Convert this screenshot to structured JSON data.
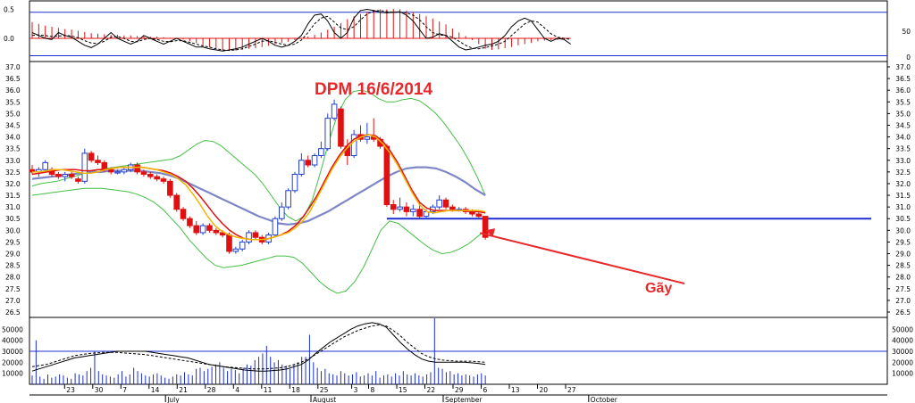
{
  "chart_data": {
    "type": "candlestick",
    "title": "DPM 16/6/2014",
    "annotation": {
      "text": "Gãy",
      "arrow_to_date": 116,
      "arrow_to_value": 30.0
    },
    "colors": {
      "up": "#1f3fd6",
      "down": "#e01010",
      "ma_fast": "#f2b400",
      "ma_slow": "#e01010",
      "ma_mid": "#7e86c8",
      "bands": "#43c043",
      "support": "#1c2fd4",
      "osc_hist": "#e01010",
      "volume": "#1c2fd4"
    },
    "price_axis": {
      "min": 26.5,
      "max": 37.0,
      "ticks": [
        "37.0",
        "36.5",
        "36.0",
        "35.5",
        "35.0",
        "34.5",
        "34.0",
        "33.5",
        "33.0",
        "32.5",
        "32.0",
        "31.5",
        "31.0",
        "30.5",
        "30.0",
        "29.5",
        "29.0",
        "28.5",
        "28.0",
        "27.5",
        "27.0",
        "26.5"
      ]
    },
    "support_line": 30.5,
    "oscillator": {
      "left_ticks": [
        "0.5",
        "0.0"
      ],
      "right_ticks": [
        "50",
        "0"
      ],
      "range": [
        -0.4,
        0.6
      ],
      "upper_line": 0.45,
      "lower_line": -0.3,
      "hist": [
        0.28,
        0.25,
        0.22,
        0.2,
        0.18,
        0.16,
        0.15,
        0.13,
        0.11,
        0.09,
        0.08,
        0.07,
        0.06,
        0.06,
        0.05,
        0.05,
        0.04,
        0.04,
        0.03,
        0.03,
        0.02,
        0.01,
        0.0,
        -0.02,
        -0.05,
        -0.08,
        -0.12,
        -0.15,
        -0.17,
        -0.2,
        -0.2,
        -0.21,
        -0.2,
        -0.18,
        -0.17,
        -0.15,
        -0.13,
        -0.1,
        -0.08,
        -0.06,
        -0.03,
        0.0,
        0.03,
        0.06,
        0.1,
        0.15,
        0.2,
        0.26,
        0.33,
        0.38,
        0.42,
        0.46,
        0.48,
        0.5,
        0.5,
        0.51,
        0.5,
        0.48,
        0.45,
        0.42,
        0.38,
        0.34,
        0.29,
        0.24,
        0.17,
        0.1,
        0.04,
        -0.03,
        -0.1,
        -0.18,
        -0.2,
        -0.19,
        -0.17,
        -0.15,
        -0.12,
        -0.1,
        -0.08,
        -0.05,
        -0.04,
        -0.03,
        -0.03,
        -0.02
      ],
      "line1": [
        0.1,
        0.05,
        0.0,
        -0.02,
        0.1,
        0.05,
        0.02,
        -0.05,
        -0.12,
        -0.16,
        -0.1,
        0.0,
        0.1,
        0.0,
        -0.05,
        -0.1,
        -0.05,
        0.05,
        0.0,
        -0.05,
        -0.1,
        -0.05,
        0.0,
        -0.05,
        -0.1,
        -0.15,
        -0.15,
        -0.18,
        -0.2,
        -0.22,
        -0.2,
        -0.18,
        -0.15,
        -0.1,
        -0.05,
        0.0,
        -0.05,
        -0.12,
        -0.15,
        -0.12,
        -0.05,
        0.05,
        0.25,
        0.4,
        0.42,
        0.3,
        0.1,
        0.0,
        0.1,
        0.35,
        0.48,
        0.5,
        0.48,
        0.45,
        0.44,
        0.45,
        0.46,
        0.4,
        0.3,
        0.15,
        0.0,
        0.02,
        0.08,
        0.05,
        -0.05,
        -0.15,
        -0.2,
        -0.18,
        -0.15,
        -0.12,
        -0.1,
        -0.05,
        0.05,
        0.2,
        0.3,
        0.35,
        0.3,
        0.15,
        0.0,
        -0.05,
        0.0,
        -0.02,
        -0.1
      ],
      "line2": [
        0.05,
        0.06,
        0.05,
        0.03,
        0.04,
        0.05,
        0.04,
        0.01,
        -0.04,
        -0.08,
        -0.09,
        -0.05,
        0.02,
        0.03,
        0.0,
        -0.05,
        -0.06,
        -0.02,
        0.0,
        -0.02,
        -0.05,
        -0.06,
        -0.04,
        -0.04,
        -0.07,
        -0.1,
        -0.13,
        -0.15,
        -0.18,
        -0.2,
        -0.21,
        -0.2,
        -0.18,
        -0.14,
        -0.1,
        -0.05,
        -0.04,
        -0.07,
        -0.1,
        -0.12,
        -0.1,
        -0.03,
        0.1,
        0.25,
        0.35,
        0.38,
        0.28,
        0.18,
        0.15,
        0.2,
        0.32,
        0.42,
        0.47,
        0.48,
        0.46,
        0.45,
        0.45,
        0.44,
        0.4,
        0.32,
        0.2,
        0.1,
        0.06,
        0.05,
        0.02,
        -0.05,
        -0.12,
        -0.17,
        -0.18,
        -0.16,
        -0.13,
        -0.1,
        -0.05,
        0.05,
        0.15,
        0.25,
        0.3,
        0.28,
        0.18,
        0.08,
        0.02,
        0.0,
        -0.02
      ]
    },
    "volume_panel": {
      "left_ticks": [
        "50000",
        "40000",
        "30000",
        "20000",
        "10000"
      ],
      "right_ticks": [
        "50000",
        "40000",
        "30000",
        "20000",
        "10000"
      ],
      "range": [
        0,
        60000
      ],
      "volume": [
        8000,
        40000,
        7000,
        5000,
        9000,
        6000,
        7000,
        9000,
        8000,
        6000,
        5000,
        10000,
        9000,
        8000,
        12000,
        15000,
        30000,
        12000,
        9000,
        8000,
        7000,
        6000,
        9000,
        12000,
        7000,
        9000,
        15000,
        12000,
        10000,
        8000,
        7000,
        9000,
        10000,
        8000,
        6000,
        5000,
        7000,
        9000,
        8000,
        11000,
        9000,
        8000,
        14000,
        15000,
        12000,
        14000,
        16000,
        18000,
        20000,
        15000,
        12000,
        14000,
        13000,
        10000,
        15000,
        18000,
        17000,
        22000,
        25000,
        28000,
        35000,
        25000,
        20000,
        22000,
        18000,
        17000,
        14000,
        18000,
        20000,
        25000,
        25000,
        45000,
        20000,
        15000,
        12000,
        14000,
        10000,
        9000,
        8000,
        12000,
        10000,
        8000,
        9000,
        11000,
        7000,
        8000,
        10000,
        8000,
        12000,
        6000,
        8000,
        9000,
        7000,
        10000,
        8000,
        12000,
        9000,
        8000,
        10000,
        8000,
        7000,
        9000,
        11000,
        60000,
        15000,
        14000,
        11000,
        12000,
        9000,
        10000,
        8000,
        9000,
        8000,
        7000,
        9000,
        10000,
        8000
      ],
      "vol_ma1": [
        12000,
        14000,
        16000,
        18000,
        20000,
        22000,
        24000,
        25000,
        26000,
        27000,
        28000,
        29000,
        30000,
        30000,
        30000,
        30000,
        30000,
        29000,
        28000,
        27000,
        26000,
        25000,
        24000,
        22000,
        20000,
        18000,
        17000,
        16000,
        15000,
        14000,
        13000,
        12500,
        12000,
        12000,
        12500,
        13000,
        14000,
        16000,
        18000,
        22000,
        28000,
        33000,
        38000,
        42000,
        46000,
        50000,
        53000,
        55000,
        56000,
        55000,
        52000,
        45000,
        38000,
        32000,
        27000,
        23000,
        21000,
        20000,
        20000,
        20000,
        20000,
        20000,
        19500,
        19000,
        18000
      ],
      "vol_ma2": [
        16000,
        17000,
        18000,
        20000,
        22000,
        24000,
        26000,
        27000,
        28000,
        28500,
        29000,
        29000,
        29000,
        28500,
        28000,
        27500,
        27000,
        26000,
        25000,
        24000,
        23000,
        22000,
        21000,
        20000,
        19000,
        18000,
        17000,
        16000,
        15500,
        15000,
        14500,
        14000,
        14000,
        14000,
        14500,
        15000,
        16000,
        18000,
        20000,
        23000,
        27000,
        31000,
        35000,
        39000,
        43000,
        46000,
        49000,
        51000,
        53000,
        54000,
        53000,
        49000,
        44000,
        38000,
        33000,
        28000,
        25000,
        23000,
        22000,
        21500,
        21000,
        21000,
        21000,
        20500,
        20000
      ]
    },
    "x_axis": {
      "day_ticks": [
        {
          "label": "23",
          "i": 1
        },
        {
          "label": "30",
          "i": 6
        },
        {
          "label": "7",
          "i": 11
        },
        {
          "label": "14",
          "i": 16
        },
        {
          "label": "21",
          "i": 21
        },
        {
          "label": "28",
          "i": 26
        },
        {
          "label": "4",
          "i": 31
        },
        {
          "label": "11",
          "i": 36
        },
        {
          "label": "18",
          "i": 41
        },
        {
          "label": "25",
          "i": 46
        },
        {
          "label": "3",
          "i": 52
        },
        {
          "label": "8",
          "i": 55
        },
        {
          "label": "15",
          "i": 60
        },
        {
          "label": "22",
          "i": 65
        },
        {
          "label": "29",
          "i": 70
        },
        {
          "label": "6",
          "i": 75
        },
        {
          "label": "13",
          "i": 80
        },
        {
          "label": "20",
          "i": 85
        },
        {
          "label": "27",
          "i": 90
        }
      ],
      "month_ticks": [
        {
          "label": "July",
          "i": 8
        },
        {
          "label": "August",
          "i": 30
        },
        {
          "label": "September",
          "i": 50
        },
        {
          "label": "October",
          "i": 72
        }
      ]
    },
    "candles": [
      [
        32.6,
        32.8,
        32.4,
        32.5
      ],
      [
        32.5,
        32.7,
        32.3,
        32.6
      ],
      [
        32.6,
        33.0,
        32.5,
        32.9
      ],
      [
        32.6,
        32.7,
        32.3,
        32.4
      ],
      [
        32.4,
        32.5,
        32.2,
        32.3
      ],
      [
        32.3,
        32.5,
        32.1,
        32.4
      ],
      [
        32.4,
        32.5,
        32.2,
        32.3
      ],
      [
        32.2,
        32.3,
        32.0,
        32.1
      ],
      [
        32.1,
        33.5,
        32.0,
        33.3
      ],
      [
        33.3,
        33.4,
        32.9,
        33.0
      ],
      [
        33.0,
        33.2,
        32.8,
        32.9
      ],
      [
        32.9,
        33.0,
        32.5,
        32.6
      ],
      [
        32.6,
        32.7,
        32.4,
        32.5
      ],
      [
        32.5,
        32.6,
        32.4,
        32.5
      ],
      [
        32.5,
        32.7,
        32.4,
        32.6
      ],
      [
        32.6,
        32.9,
        32.5,
        32.8
      ],
      [
        32.8,
        32.9,
        32.4,
        32.5
      ],
      [
        32.5,
        32.6,
        32.3,
        32.4
      ],
      [
        32.4,
        32.5,
        32.2,
        32.3
      ],
      [
        32.3,
        32.4,
        32.1,
        32.2
      ],
      [
        32.2,
        32.3,
        32.0,
        32.1
      ],
      [
        32.1,
        32.2,
        31.4,
        31.5
      ],
      [
        31.5,
        31.6,
        30.8,
        30.9
      ],
      [
        30.9,
        31.0,
        30.4,
        30.5
      ],
      [
        30.5,
        30.6,
        30.1,
        30.2
      ],
      [
        30.2,
        30.4,
        29.8,
        29.9
      ],
      [
        29.9,
        30.3,
        29.8,
        30.2
      ],
      [
        30.2,
        30.3,
        29.9,
        30.0
      ],
      [
        30.0,
        30.1,
        29.8,
        29.9
      ],
      [
        29.9,
        30.0,
        29.7,
        29.8
      ],
      [
        29.8,
        29.9,
        29.0,
        29.1
      ],
      [
        29.1,
        29.3,
        29.0,
        29.2
      ],
      [
        29.2,
        29.6,
        29.1,
        29.5
      ],
      [
        29.5,
        30.0,
        29.4,
        29.9
      ],
      [
        29.9,
        30.0,
        29.6,
        29.7
      ],
      [
        29.7,
        29.8,
        29.4,
        29.5
      ],
      [
        29.5,
        29.9,
        29.4,
        29.8
      ],
      [
        29.8,
        30.6,
        29.7,
        30.5
      ],
      [
        30.5,
        31.2,
        30.4,
        31.0
      ],
      [
        31.0,
        31.8,
        30.9,
        31.7
      ],
      [
        31.7,
        32.5,
        31.6,
        32.4
      ],
      [
        32.4,
        33.3,
        32.3,
        33.0
      ],
      [
        33.0,
        33.2,
        32.7,
        32.8
      ],
      [
        32.8,
        33.3,
        32.7,
        33.2
      ],
      [
        33.2,
        33.8,
        33.1,
        33.5
      ],
      [
        33.5,
        35.0,
        33.4,
        34.8
      ],
      [
        34.8,
        35.6,
        34.7,
        35.4
      ],
      [
        35.2,
        35.3,
        33.5,
        33.6
      ],
      [
        33.6,
        33.9,
        32.8,
        33.2
      ],
      [
        33.2,
        34.3,
        33.1,
        34.1
      ],
      [
        34.1,
        34.5,
        33.8,
        33.9
      ],
      [
        33.9,
        34.6,
        33.7,
        34.0
      ],
      [
        34.0,
        34.8,
        33.8,
        33.9
      ],
      [
        33.9,
        34.0,
        33.5,
        33.6
      ],
      [
        33.6,
        33.7,
        31.0,
        31.1
      ],
      [
        31.1,
        31.3,
        30.7,
        30.9
      ],
      [
        30.9,
        31.4,
        30.8,
        31.0
      ],
      [
        31.0,
        31.2,
        30.6,
        30.8
      ],
      [
        30.8,
        31.1,
        30.6,
        30.9
      ],
      [
        30.9,
        31.2,
        30.5,
        30.6
      ],
      [
        30.6,
        30.9,
        30.5,
        30.8
      ],
      [
        30.8,
        31.1,
        30.7,
        31.0
      ],
      [
        31.0,
        31.5,
        30.9,
        31.3
      ],
      [
        31.3,
        31.4,
        30.9,
        31.0
      ],
      [
        31.0,
        31.1,
        30.8,
        30.9
      ],
      [
        30.9,
        31.0,
        30.8,
        30.9
      ],
      [
        30.9,
        31.0,
        30.7,
        30.8
      ],
      [
        30.8,
        30.9,
        30.6,
        30.7
      ],
      [
        30.7,
        30.8,
        30.5,
        30.6
      ],
      [
        30.6,
        30.6,
        29.6,
        29.7
      ]
    ],
    "ma_fast": [
      32.5,
      32.5,
      32.55,
      32.6,
      32.6,
      32.55,
      32.5,
      32.45,
      32.45,
      32.5,
      32.6,
      32.65,
      32.7,
      32.7,
      32.7,
      32.7,
      32.65,
      32.6,
      32.5,
      32.4,
      32.2,
      31.95,
      31.55,
      31.1,
      30.6,
      30.2,
      29.95,
      29.8,
      29.7,
      29.65,
      29.6,
      29.6,
      29.62,
      29.7,
      29.8,
      29.9,
      30.1,
      30.4,
      30.8,
      31.4,
      32.0,
      32.6,
      33.1,
      33.5,
      33.8,
      34.0,
      34.1,
      34.0,
      33.7,
      33.3,
      32.8,
      32.2,
      31.6,
      31.1,
      30.8,
      30.75,
      30.8,
      30.85,
      30.85,
      30.85,
      30.85,
      30.85,
      30.8
    ],
    "ma_slow": [
      32.4,
      32.45,
      32.5,
      32.55,
      32.6,
      32.6,
      32.6,
      32.55,
      32.55,
      32.6,
      32.6,
      32.65,
      32.7,
      32.7,
      32.7,
      32.7,
      32.65,
      32.6,
      32.55,
      32.45,
      32.3,
      32.1,
      31.8,
      31.45,
      31.05,
      30.65,
      30.3,
      30.0,
      29.8,
      29.65,
      29.6,
      29.6,
      29.62,
      29.7,
      29.8,
      29.95,
      30.2,
      30.55,
      31.0,
      31.5,
      32.1,
      32.7,
      33.2,
      33.6,
      33.9,
      34.05,
      34.1,
      34.05,
      33.8,
      33.4,
      32.9,
      32.3,
      31.7,
      31.2,
      30.95,
      30.85,
      30.85,
      30.85,
      30.85,
      30.85,
      30.8,
      30.8,
      30.75
    ],
    "ma_mid": [
      32.2,
      32.25,
      32.3,
      32.35,
      32.4,
      32.45,
      32.5,
      32.5,
      32.55,
      32.55,
      32.55,
      32.55,
      32.5,
      32.45,
      32.35,
      32.2,
      32.0,
      31.8,
      31.6,
      31.4,
      31.2,
      31.0,
      30.8,
      30.6,
      30.45,
      30.3,
      30.25,
      30.3,
      30.4,
      30.6,
      30.8,
      31.05,
      31.3,
      31.55,
      31.8,
      32.05,
      32.3,
      32.5,
      32.65,
      32.7,
      32.7,
      32.65,
      32.5,
      32.3,
      32.05,
      31.75,
      31.5
    ],
    "band_up": [
      31.9,
      32.0,
      32.05,
      32.1,
      32.2,
      32.3,
      32.4,
      32.5,
      32.6,
      32.65,
      32.7,
      32.75,
      32.8,
      32.85,
      32.9,
      32.95,
      33.0,
      33.05,
      33.2,
      33.45,
      33.7,
      33.85,
      33.8,
      33.6,
      33.3,
      33.0,
      32.7,
      32.4,
      32.0,
      31.5,
      31.0,
      30.6,
      30.4,
      30.6,
      31.3,
      32.5,
      33.8,
      34.9,
      35.6,
      35.95,
      36.0,
      35.9,
      35.65,
      35.5,
      35.5,
      35.6,
      35.65,
      35.55,
      35.3,
      35.0,
      34.6,
      34.1,
      33.6,
      33.0,
      32.3,
      31.5
    ],
    "band_low": [
      31.5,
      31.55,
      31.6,
      31.65,
      31.7,
      31.75,
      31.8,
      31.8,
      31.8,
      31.75,
      31.7,
      31.65,
      31.55,
      31.4,
      31.2,
      30.9,
      30.5,
      30.1,
      29.6,
      29.2,
      28.8,
      28.5,
      28.4,
      28.45,
      28.5,
      28.6,
      28.7,
      28.8,
      28.9,
      28.9,
      28.85,
      28.6,
      28.2,
      27.8,
      27.5,
      27.3,
      27.4,
      27.8,
      28.4,
      29.2,
      30.0,
      30.4,
      30.3,
      30.0,
      29.7,
      29.4,
      29.15,
      29.0,
      29.05,
      29.2,
      29.4,
      29.7,
      30.0
    ]
  }
}
